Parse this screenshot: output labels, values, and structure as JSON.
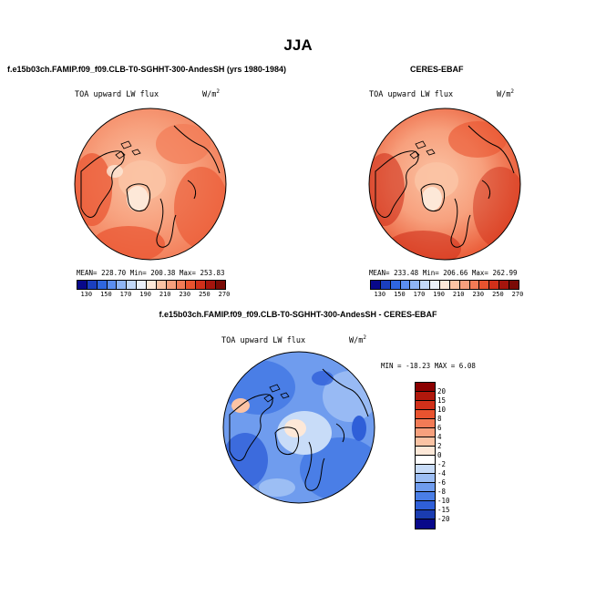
{
  "title": "JJA",
  "panels": {
    "model": {
      "title": "f.e15b03ch.FAMIP.f09_f09.CLB-T0-SGHHT-300-AndesSH (yrs 1980-1984)",
      "variable": "TOA upward LW flux",
      "units_base": "W/m",
      "units_exp": "2",
      "stats": "MEAN= 228.70   Min= 200.38   Max= 253.83"
    },
    "obs": {
      "title": "CERES-EBAF",
      "variable": "TOA upward LW flux",
      "units_base": "W/m",
      "units_exp": "2",
      "stats": "MEAN= 233.48   Min= 206.66   Max= 262.99"
    },
    "diff": {
      "title": "f.e15b03ch.FAMIP.f09_f09.CLB-T0-SGHHT-300-AndesSH - CERES-EBAF",
      "variable": "TOA upward LW flux",
      "units_base": "W/m",
      "units_exp": "2",
      "stats": "MIN = -18.23 MAX =   6.08"
    }
  },
  "abs_colorbar": {
    "colors": [
      "#08088a",
      "#1b3fbf",
      "#2f66e0",
      "#5b8ef0",
      "#8fb5f5",
      "#c2d8f8",
      "#eaf0fa",
      "#fde8d8",
      "#fbc3a4",
      "#f7a07d",
      "#f27b56",
      "#e9532f",
      "#d0301a",
      "#a5150d",
      "#7a0b06"
    ],
    "labels": [
      "130",
      "150",
      "170",
      "190",
      "210",
      "230",
      "250",
      "270"
    ]
  },
  "diff_colorbar": {
    "colors": [
      "#8b0000",
      "#b0180c",
      "#d0301a",
      "#e9532f",
      "#f27b56",
      "#f7a07d",
      "#fbc3a4",
      "#fde8d8",
      "#ffffff",
      "#c8dcf8",
      "#9cbef4",
      "#6f9cee",
      "#4a7ee6",
      "#2f5fd8",
      "#1a3cb0",
      "#08088a"
    ],
    "labels": [
      "20",
      "15",
      "10",
      "8",
      "6",
      "4",
      "2",
      "0",
      "-2",
      "-4",
      "-6",
      "-8",
      "-10",
      "-15",
      "-20"
    ]
  }
}
